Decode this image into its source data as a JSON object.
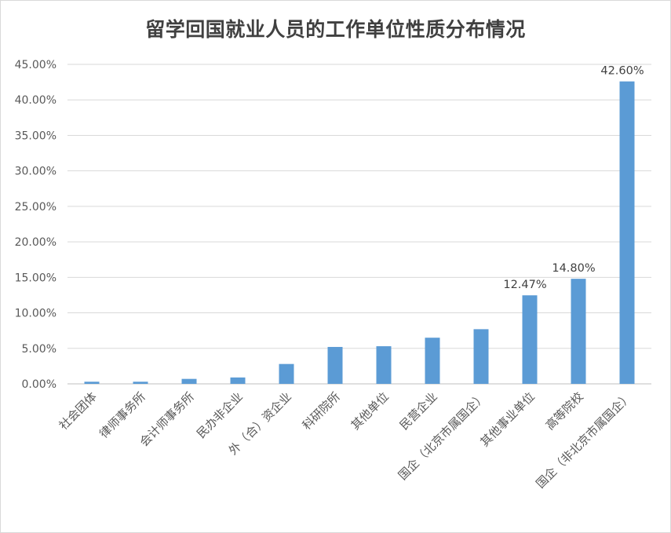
{
  "chart_data": {
    "type": "bar",
    "title": "留学回国就业人员的工作单位性质分布情况",
    "categories": [
      "社会团体",
      "律师事务所",
      "会计师事务所",
      "民办非企业",
      "外（合）资企业",
      "科研院所",
      "其他单位",
      "民营企业",
      "国企（北京市属国企）",
      "其他事业单位",
      "高等院校",
      "国企（非北京市属国企）"
    ],
    "values": [
      0.3,
      0.3,
      0.7,
      0.9,
      2.8,
      5.2,
      5.3,
      6.5,
      7.7,
      12.47,
      14.8,
      42.6
    ],
    "data_labels": [
      "",
      "",
      "",
      "",
      "",
      "",
      "",
      "",
      "",
      "12.47%",
      "14.80%",
      "42.60%"
    ],
    "y_ticks": [
      "0.00%",
      "5.00%",
      "10.00%",
      "15.00%",
      "20.00%",
      "25.00%",
      "30.00%",
      "35.00%",
      "40.00%",
      "45.00%"
    ],
    "ylim": [
      0,
      45
    ],
    "xlabel": "",
    "ylabel": "",
    "grid": true,
    "bar_color": "#5b9bd5",
    "grid_color": "#d9d9d9"
  }
}
